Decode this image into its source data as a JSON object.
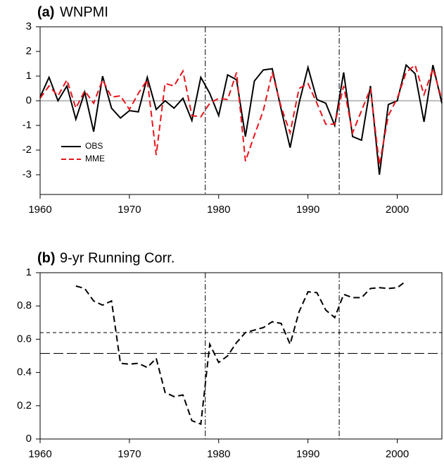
{
  "chart_data": [
    {
      "type": "line",
      "panel_label": "(a)",
      "title": "WNPMI",
      "x": [
        1960,
        1961,
        1962,
        1963,
        1964,
        1965,
        1966,
        1967,
        1968,
        1969,
        1970,
        1971,
        1972,
        1973,
        1974,
        1975,
        1976,
        1977,
        1978,
        1979,
        1980,
        1981,
        1982,
        1983,
        1984,
        1985,
        1986,
        1987,
        1988,
        1989,
        1990,
        1991,
        1992,
        1993,
        1994,
        1995,
        1996,
        1997,
        1998,
        1999,
        2000,
        2001,
        2002,
        2003,
        2004,
        2005
      ],
      "series": [
        {
          "name": "OBS",
          "color": "#000000",
          "dash": "solid",
          "values": [
            0.15,
            0.95,
            0.0,
            0.6,
            -0.75,
            0.35,
            -1.25,
            1.0,
            -0.3,
            -0.7,
            -0.4,
            -0.45,
            0.95,
            -0.35,
            0.0,
            -0.3,
            0.1,
            -0.8,
            0.95,
            0.3,
            -0.6,
            1.05,
            0.85,
            -1.45,
            0.8,
            1.25,
            1.3,
            -0.35,
            -1.9,
            -0.1,
            1.35,
            0.05,
            -0.1,
            -1.0,
            1.15,
            -1.45,
            -1.6,
            0.6,
            -3.0,
            -0.15,
            0.0,
            1.45,
            1.1,
            -0.85,
            1.45,
            -0.1
          ]
        },
        {
          "name": "MME",
          "color": "#e8141c",
          "dash": "dashed",
          "values": [
            0.1,
            0.6,
            0.2,
            0.85,
            -0.3,
            0.4,
            -0.1,
            0.85,
            0.15,
            0.2,
            -0.35,
            0.3,
            0.85,
            -2.2,
            0.7,
            0.6,
            1.2,
            -0.6,
            -0.65,
            -0.1,
            0.1,
            0.05,
            1.15,
            -2.45,
            -1.4,
            -0.4,
            1.15,
            -0.25,
            -1.3,
            0.5,
            0.7,
            -0.1,
            -0.95,
            -0.95,
            0.6,
            -1.3,
            -0.4,
            0.5,
            -2.6,
            -0.6,
            0.1,
            1.15,
            1.45,
            0.25,
            1.3,
            0.05
          ]
        }
      ],
      "xlim": [
        1960,
        2005
      ],
      "xticks": [
        1960,
        1970,
        1980,
        1990,
        2000
      ],
      "ylim": [
        -3.8,
        3
      ],
      "yticks": [
        -3,
        -2,
        -1,
        0,
        1,
        2,
        3
      ],
      "vlines": [
        1978.5,
        1993.5
      ],
      "hlines": [
        0
      ],
      "legend": "lower-left"
    },
    {
      "type": "line",
      "panel_label": "(b)",
      "title": "9-yr Running Corr.",
      "x": [
        1964,
        1965,
        1966,
        1967,
        1968,
        1969,
        1970,
        1971,
        1972,
        1973,
        1974,
        1975,
        1976,
        1977,
        1978,
        1979,
        1980,
        1981,
        1982,
        1983,
        1984,
        1985,
        1986,
        1987,
        1988,
        1989,
        1990,
        1991,
        1992,
        1993,
        1994,
        1995,
        1996,
        1997,
        1998,
        1999,
        2000,
        2001
      ],
      "series": [
        {
          "color": "#000000",
          "dash": "dashed",
          "values": [
            0.92,
            0.905,
            0.83,
            0.805,
            0.83,
            0.455,
            0.45,
            0.455,
            0.43,
            0.485,
            0.28,
            0.255,
            0.265,
            0.11,
            0.09,
            0.57,
            0.46,
            0.5,
            0.58,
            0.64,
            0.655,
            0.67,
            0.705,
            0.695,
            0.57,
            0.765,
            0.885,
            0.88,
            0.775,
            0.73,
            0.87,
            0.85,
            0.85,
            0.905,
            0.91,
            0.905,
            0.91,
            0.95
          ]
        }
      ],
      "xlim": [
        1960,
        2005
      ],
      "xticks": [
        1960,
        1970,
        1980,
        1990,
        2000
      ],
      "ylim": [
        0,
        1
      ],
      "yticks": [
        0,
        0.2,
        0.4,
        0.6,
        0.8,
        1
      ],
      "vlines": [
        1978.5,
        1993.5
      ],
      "hlines": [
        0.64,
        0.515
      ]
    }
  ]
}
